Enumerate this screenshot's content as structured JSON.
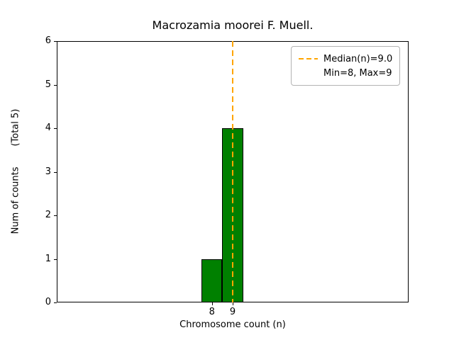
{
  "chart_data": {
    "type": "bar",
    "title": "Macrozamia moorei F. Muell.",
    "xlabel": "Chromosome count (n)",
    "ylabel": "Num of counts       (Total 5)",
    "total_counts": 5,
    "categories": [
      8,
      9
    ],
    "values": [
      1,
      4
    ],
    "bin_width": 1,
    "xlim": [
      0.5,
      17.5
    ],
    "ylim": [
      0,
      6
    ],
    "xticks": [
      8,
      9
    ],
    "yticks": [
      0,
      1,
      2,
      3,
      4,
      5,
      6
    ],
    "median": 9.0,
    "min": 8,
    "max": 9,
    "bar_color": "#008000",
    "bar_edge_color": "#000000",
    "median_line_color": "#ffa500",
    "legend": {
      "position": "upper right",
      "median_label": "Median(n)=9.0",
      "minmax_label": "Min=8, Max=9"
    }
  }
}
